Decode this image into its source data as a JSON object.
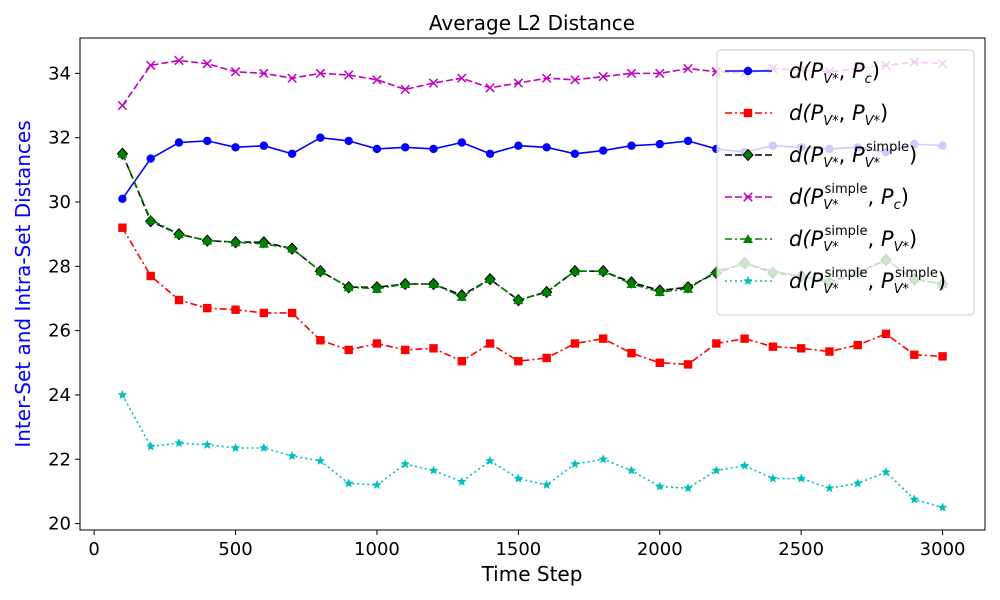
{
  "chart_data": {
    "type": "line",
    "title": "Average L2 Distance",
    "xlabel": "Time Step",
    "ylabel": "Inter-Set and Intra-Set Distances",
    "ylabel_color": "#0000ff",
    "xlim": [
      -50,
      3150
    ],
    "ylim": [
      19.8,
      35.1
    ],
    "xticks": [
      0,
      500,
      1000,
      1500,
      2000,
      2500,
      3000
    ],
    "yticks": [
      20,
      22,
      24,
      26,
      28,
      30,
      32,
      34
    ],
    "grid": false,
    "legend_position": "top-right",
    "x": [
      100,
      200,
      300,
      400,
      500,
      600,
      700,
      800,
      900,
      1000,
      1100,
      1200,
      1300,
      1400,
      1500,
      1600,
      1700,
      1800,
      1900,
      2000,
      2100,
      2200,
      2300,
      2400,
      2500,
      2600,
      2700,
      2800,
      2900,
      3000
    ],
    "series": [
      {
        "key": "s1",
        "label_main": "d(P",
        "label_parts": [
          {
            "t": "d(",
            "s": "n"
          },
          {
            "t": "P",
            "s": "n"
          },
          {
            "t": "V*",
            "s": "sub"
          },
          {
            "t": ", ",
            "s": "n"
          },
          {
            "t": "P",
            "s": "n"
          },
          {
            "t": "c",
            "s": "sub"
          },
          {
            "t": ")",
            "s": "n"
          }
        ],
        "color": "#0000ff",
        "marker": "circle",
        "linestyle": "solid",
        "values": [
          30.1,
          31.35,
          31.85,
          31.9,
          31.7,
          31.75,
          31.5,
          32.0,
          31.9,
          31.65,
          31.7,
          31.65,
          31.85,
          31.5,
          31.75,
          31.7,
          31.5,
          31.6,
          31.75,
          31.8,
          31.9,
          31.65,
          31.55,
          31.75,
          31.7,
          31.65,
          31.7,
          31.55,
          31.8,
          31.75
        ]
      },
      {
        "key": "s2",
        "label_parts": [
          {
            "t": "d(",
            "s": "n"
          },
          {
            "t": "P",
            "s": "n"
          },
          {
            "t": "V*",
            "s": "sub"
          },
          {
            "t": ", ",
            "s": "n"
          },
          {
            "t": "P",
            "s": "n"
          },
          {
            "t": "V*",
            "s": "sub"
          },
          {
            "t": ")",
            "s": "n"
          }
        ],
        "color": "#ff0000",
        "marker": "square",
        "linestyle": "dashdot",
        "values": [
          29.2,
          27.7,
          26.95,
          26.7,
          26.65,
          26.55,
          26.55,
          25.7,
          25.4,
          25.6,
          25.4,
          25.45,
          25.05,
          25.6,
          25.05,
          25.15,
          25.6,
          25.75,
          25.3,
          25.0,
          24.95,
          25.6,
          25.75,
          25.5,
          25.45,
          25.35,
          25.55,
          25.9,
          25.25,
          25.2
        ]
      },
      {
        "key": "s3",
        "label_parts": [
          {
            "t": "d(",
            "s": "n"
          },
          {
            "t": "P",
            "s": "n"
          },
          {
            "t": "V*",
            "s": "sub"
          },
          {
            "t": ", ",
            "s": "n"
          },
          {
            "t": "P",
            "s": "n"
          },
          {
            "t": "V*",
            "s": "sub"
          },
          {
            "t": "simple",
            "s": "sup"
          },
          {
            "t": ")",
            "s": "n"
          }
        ],
        "color": "#000000",
        "marker_fill": "#008000",
        "marker": "diamond",
        "linestyle": "dashed",
        "values": [
          31.5,
          29.4,
          29.0,
          28.8,
          28.75,
          28.75,
          28.55,
          27.85,
          27.35,
          27.35,
          27.45,
          27.45,
          27.1,
          27.6,
          26.95,
          27.2,
          27.85,
          27.85,
          27.5,
          27.25,
          27.35,
          27.8,
          28.1,
          27.8,
          27.7,
          27.5,
          27.8,
          28.2,
          27.6,
          27.45
        ]
      },
      {
        "key": "s4",
        "label_parts": [
          {
            "t": "d(",
            "s": "n"
          },
          {
            "t": "P",
            "s": "n"
          },
          {
            "t": "V*",
            "s": "sub"
          },
          {
            "t": "simple",
            "s": "sup"
          },
          {
            "t": ", ",
            "s": "n"
          },
          {
            "t": "P",
            "s": "n"
          },
          {
            "t": "c",
            "s": "sub"
          },
          {
            "t": ")",
            "s": "n"
          }
        ],
        "color": "#bf00bf",
        "marker": "x",
        "linestyle": "dashed",
        "values": [
          33.0,
          34.25,
          34.4,
          34.3,
          34.05,
          34.0,
          33.85,
          34.0,
          33.95,
          33.8,
          33.5,
          33.7,
          33.85,
          33.55,
          33.7,
          33.85,
          33.8,
          33.9,
          34.0,
          34.0,
          34.15,
          34.05,
          34.0,
          34.15,
          34.1,
          34.05,
          34.15,
          34.25,
          34.35,
          34.3
        ]
      },
      {
        "key": "s5",
        "label_parts": [
          {
            "t": "d(",
            "s": "n"
          },
          {
            "t": "P",
            "s": "n"
          },
          {
            "t": "V*",
            "s": "sub"
          },
          {
            "t": "simple",
            "s": "sup"
          },
          {
            "t": ", ",
            "s": "n"
          },
          {
            "t": "P",
            "s": "n"
          },
          {
            "t": "V*",
            "s": "sub"
          },
          {
            "t": ")",
            "s": "n"
          }
        ],
        "color": "#008000",
        "marker": "triangle",
        "linestyle": "dashdot",
        "values": [
          31.5,
          29.45,
          29.0,
          28.8,
          28.75,
          28.7,
          28.55,
          27.85,
          27.35,
          27.3,
          27.45,
          27.45,
          27.05,
          27.6,
          26.95,
          27.2,
          27.85,
          27.85,
          27.45,
          27.2,
          27.3,
          27.85,
          28.1,
          27.85,
          27.7,
          27.55,
          27.8,
          28.2,
          27.6,
          27.45
        ]
      },
      {
        "key": "s6",
        "label_parts": [
          {
            "t": "d(",
            "s": "n"
          },
          {
            "t": "P",
            "s": "n"
          },
          {
            "t": "V*",
            "s": "sub"
          },
          {
            "t": "simple",
            "s": "sup"
          },
          {
            "t": ", ",
            "s": "n"
          },
          {
            "t": "P",
            "s": "n"
          },
          {
            "t": "V*",
            "s": "sub"
          },
          {
            "t": "simple",
            "s": "sup"
          },
          {
            "t": ")",
            "s": "n"
          }
        ],
        "color": "#00bfbf",
        "marker": "star",
        "linestyle": "dotted",
        "values": [
          24.0,
          22.4,
          22.5,
          22.45,
          22.35,
          22.35,
          22.1,
          21.95,
          21.25,
          21.2,
          21.85,
          21.65,
          21.3,
          21.95,
          21.4,
          21.2,
          21.85,
          22.0,
          21.65,
          21.15,
          21.1,
          21.65,
          21.8,
          21.4,
          21.4,
          21.1,
          21.25,
          21.6,
          20.75,
          20.5
        ]
      }
    ]
  }
}
